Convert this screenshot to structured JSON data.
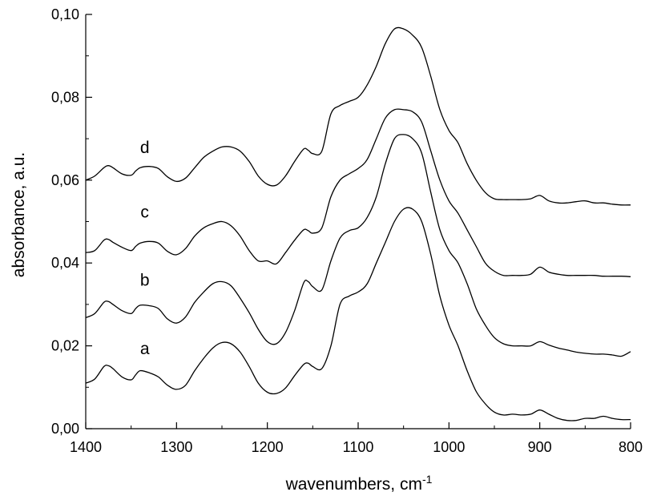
{
  "chart_data": {
    "type": "line",
    "xlabel": "wavenumbers, cm",
    "xlabel_sup": "-1",
    "ylabel": "absorbance, a.u.",
    "xlim": [
      1400,
      800
    ],
    "ylim": [
      0.0,
      0.1
    ],
    "x_reversed": true,
    "grid": false,
    "legend": "none",
    "xticks": [
      1400,
      1300,
      1200,
      1100,
      1000,
      900,
      800
    ],
    "xtick_labels": [
      "1400",
      "1300",
      "1200",
      "1100",
      "1000",
      "900",
      "800"
    ],
    "yticks": [
      0.0,
      0.02,
      0.04,
      0.06,
      0.08,
      0.1
    ],
    "ytick_labels": [
      "0,00",
      "0,02",
      "0,04",
      "0,06",
      "0,08",
      "0,10"
    ],
    "x": [
      1400,
      1390,
      1380,
      1375,
      1370,
      1360,
      1350,
      1345,
      1340,
      1330,
      1320,
      1310,
      1300,
      1290,
      1280,
      1270,
      1260,
      1250,
      1240,
      1230,
      1220,
      1210,
      1200,
      1190,
      1180,
      1170,
      1160,
      1155,
      1150,
      1140,
      1130,
      1120,
      1110,
      1100,
      1090,
      1080,
      1070,
      1060,
      1050,
      1040,
      1030,
      1020,
      1010,
      1000,
      990,
      980,
      970,
      960,
      950,
      940,
      930,
      920,
      910,
      900,
      890,
      880,
      870,
      860,
      850,
      840,
      830,
      820,
      810,
      800
    ],
    "series": [
      {
        "label": "a",
        "label_x": 1335,
        "label_y": 0.018,
        "values": [
          0.011,
          0.012,
          0.015,
          0.0152,
          0.0145,
          0.0125,
          0.0118,
          0.013,
          0.014,
          0.0135,
          0.0125,
          0.0105,
          0.0095,
          0.0105,
          0.014,
          0.017,
          0.0195,
          0.0208,
          0.0205,
          0.0185,
          0.015,
          0.011,
          0.0088,
          0.0085,
          0.0098,
          0.0128,
          0.0155,
          0.0158,
          0.015,
          0.0145,
          0.02,
          0.03,
          0.032,
          0.033,
          0.035,
          0.04,
          0.045,
          0.05,
          0.053,
          0.053,
          0.05,
          0.042,
          0.032,
          0.025,
          0.02,
          0.014,
          0.009,
          0.006,
          0.004,
          0.0033,
          0.0035,
          0.0033,
          0.0035,
          0.0045,
          0.0035,
          0.0025,
          0.002,
          0.002,
          0.0025,
          0.0025,
          0.003,
          0.0025,
          0.0022,
          0.0022
        ]
      },
      {
        "label": "b",
        "label_x": 1335,
        "label_y": 0.0345,
        "values": [
          0.0268,
          0.0278,
          0.0305,
          0.0307,
          0.03,
          0.0285,
          0.0278,
          0.029,
          0.0298,
          0.0297,
          0.029,
          0.0265,
          0.0255,
          0.027,
          0.0305,
          0.033,
          0.035,
          0.0355,
          0.0345,
          0.0315,
          0.028,
          0.024,
          0.021,
          0.0205,
          0.0232,
          0.0285,
          0.0352,
          0.0355,
          0.0343,
          0.0335,
          0.0405,
          0.046,
          0.0478,
          0.0485,
          0.051,
          0.056,
          0.064,
          0.07,
          0.071,
          0.07,
          0.0665,
          0.057,
          0.048,
          0.043,
          0.04,
          0.035,
          0.029,
          0.025,
          0.022,
          0.0205,
          0.02,
          0.02,
          0.02,
          0.021,
          0.0202,
          0.0195,
          0.019,
          0.0185,
          0.0182,
          0.018,
          0.018,
          0.0178,
          0.0175,
          0.0186
        ]
      },
      {
        "label": "c",
        "label_x": 1335,
        "label_y": 0.051,
        "values": [
          0.0425,
          0.043,
          0.0455,
          0.0457,
          0.045,
          0.0438,
          0.043,
          0.044,
          0.0448,
          0.0452,
          0.0448,
          0.0428,
          0.042,
          0.0435,
          0.0465,
          0.0485,
          0.0495,
          0.05,
          0.049,
          0.0465,
          0.043,
          0.0405,
          0.0405,
          0.0398,
          0.0425,
          0.0455,
          0.048,
          0.0478,
          0.0472,
          0.0485,
          0.056,
          0.06,
          0.0615,
          0.0628,
          0.065,
          0.07,
          0.075,
          0.077,
          0.077,
          0.0765,
          0.074,
          0.067,
          0.06,
          0.055,
          0.052,
          0.048,
          0.044,
          0.04,
          0.038,
          0.037,
          0.037,
          0.037,
          0.0373,
          0.039,
          0.0378,
          0.0373,
          0.037,
          0.037,
          0.037,
          0.037,
          0.0368,
          0.0368,
          0.0368,
          0.0367
        ]
      },
      {
        "label": "d",
        "label_x": 1335,
        "label_y": 0.0665,
        "values": [
          0.06,
          0.061,
          0.063,
          0.0635,
          0.063,
          0.0615,
          0.0612,
          0.0622,
          0.063,
          0.0633,
          0.0628,
          0.0608,
          0.0597,
          0.0605,
          0.063,
          0.0655,
          0.067,
          0.068,
          0.068,
          0.067,
          0.0645,
          0.061,
          0.059,
          0.0588,
          0.061,
          0.0645,
          0.0675,
          0.0672,
          0.0664,
          0.067,
          0.076,
          0.078,
          0.079,
          0.08,
          0.083,
          0.0875,
          0.093,
          0.0965,
          0.0965,
          0.095,
          0.092,
          0.085,
          0.077,
          0.072,
          0.069,
          0.064,
          0.06,
          0.057,
          0.0555,
          0.0553,
          0.0553,
          0.0553,
          0.0555,
          0.0563,
          0.055,
          0.0545,
          0.0545,
          0.0548,
          0.055,
          0.0545,
          0.0545,
          0.0542,
          0.054,
          0.054
        ]
      }
    ]
  }
}
